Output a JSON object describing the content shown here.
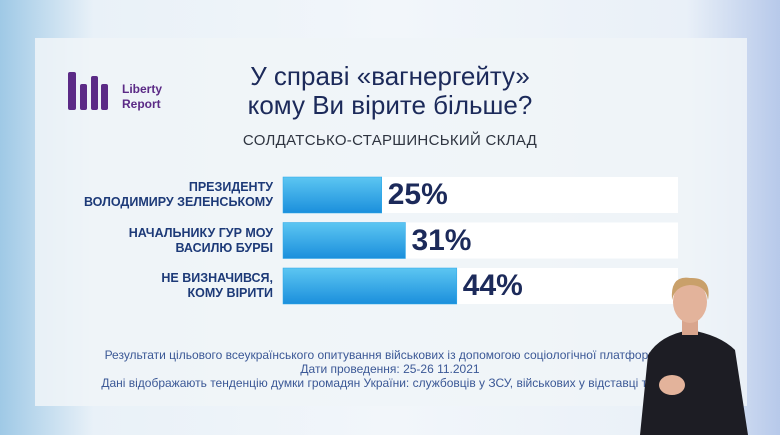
{
  "logo": "Liberty\nReport",
  "chart_data": {
    "type": "hbar",
    "title": "У справі «вагнергейту»\nкому Ви вірите більше?",
    "subtitle": "СОЛДАТСЬКО-СТАРШИНСЬКИЙ СКЛАД",
    "categories": [
      "ПРЕЗИДЕНТУ\nВОЛОДИМИРУ ЗЕЛЕНСЬКОМУ",
      "НАЧАЛЬНИКУ ГУР МОУ\nВАСИЛЮ БУРБІ",
      "НЕ ВИЗНАЧИВСЯ,\nКОМУ ВІРИТИ"
    ],
    "values": [
      25,
      31,
      44
    ],
    "value_labels": [
      "25%",
      "31%",
      "44%"
    ],
    "xlim": [
      0,
      100
    ],
    "color": "#2aa6e8"
  },
  "footnotes": [
    "Результати цільового всеукраїнського опитування військових із допомогою соціологічної платформи Ц",
    "Дати проведення: 25-26 11.2021",
    "Дані відображають тенденцію думки громадян України: службовців у ЗСУ, військових у відставці та війс"
  ]
}
